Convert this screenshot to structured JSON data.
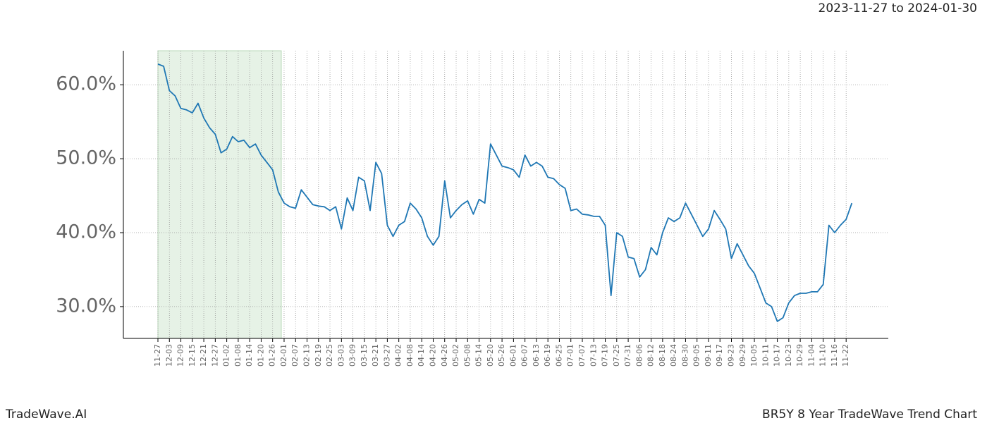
{
  "chart_data": {
    "type": "line",
    "title": "2023-11-27 to 2024-01-30",
    "brand": "TradeWave.AI",
    "subtitle": "BR5Y 8 Year TradeWave Trend Chart",
    "categories": [
      "11-27",
      null,
      "12-03",
      null,
      "12-09",
      null,
      "12-15",
      null,
      "12-21",
      null,
      "12-27",
      null,
      "01-02",
      null,
      "01-08",
      null,
      "01-14",
      null,
      "01-20",
      null,
      "01-26",
      null,
      "02-01",
      null,
      "02-07",
      null,
      "02-13",
      null,
      "02-19",
      null,
      "02-25",
      null,
      "03-03",
      null,
      "03-09",
      null,
      "03-15",
      null,
      "03-21",
      null,
      "03-27",
      null,
      "04-02",
      null,
      "04-08",
      null,
      "04-14",
      null,
      "04-20",
      null,
      "04-26",
      null,
      "05-02",
      null,
      "05-08",
      null,
      "05-14",
      null,
      "05-20",
      null,
      "05-26",
      null,
      "06-01",
      null,
      "06-07",
      null,
      "06-13",
      null,
      "06-19",
      null,
      "06-25",
      null,
      "07-01",
      null,
      "07-07",
      null,
      "07-13",
      null,
      "07-19",
      null,
      "07-25",
      null,
      "07-31",
      null,
      "08-06",
      null,
      "08-12",
      null,
      "08-18",
      null,
      "08-24",
      null,
      "08-30",
      null,
      "09-05",
      null,
      "09-11",
      null,
      "09-17",
      null,
      "09-23",
      null,
      "09-29",
      null,
      "10-05",
      null,
      "10-11",
      null,
      "10-17",
      null,
      "10-23",
      null,
      "10-29",
      null,
      "11-04",
      null,
      "11-10",
      null,
      "11-16",
      null,
      "11-22",
      null
    ],
    "series": [
      {
        "color": "#1f77b4",
        "values": [
          62.8,
          62.5,
          59.2,
          58.5,
          56.8,
          56.6,
          56.2,
          57.5,
          55.5,
          54.2,
          53.3,
          50.8,
          51.3,
          53.0,
          52.3,
          52.5,
          51.5,
          52.0,
          50.5,
          49.5,
          48.5,
          45.5,
          44.0,
          43.5,
          43.3,
          45.8,
          44.8,
          43.8,
          43.6,
          43.5,
          43.0,
          43.5,
          40.5,
          44.7,
          43.0,
          47.5,
          47.0,
          43.0,
          49.5,
          48.0,
          41.0,
          39.5,
          41.0,
          41.5,
          44.0,
          43.2,
          42.0,
          39.5,
          38.3,
          39.5,
          47.0,
          42.0,
          43.0,
          43.8,
          44.3,
          42.5,
          44.5,
          44.0,
          52.0,
          50.5,
          49.0,
          48.8,
          48.5,
          47.5,
          50.5,
          49.0,
          49.5,
          49.0,
          47.5,
          47.3,
          46.5,
          46.0,
          43.0,
          43.2,
          42.5,
          42.4,
          42.2,
          42.2,
          41.0,
          31.5,
          40.0,
          39.5,
          36.7,
          36.5,
          34.0,
          35.0,
          38.0,
          37.0,
          40.0,
          42.0,
          41.5,
          42.0,
          44.0,
          42.5,
          41.0,
          39.5,
          40.5,
          43.0,
          41.8,
          40.5,
          36.5,
          38.5,
          37.0,
          35.5,
          34.5,
          32.5,
          30.5,
          30.0,
          28.0,
          28.5,
          30.5,
          31.5,
          31.8,
          31.8,
          32.0,
          32.0,
          33.0,
          41.0,
          40.0,
          41.0,
          41.8,
          44.0
        ]
      }
    ],
    "ylim": [
      25.7,
      64.6
    ],
    "yticks": [
      {
        "value": 30,
        "label": "30.0%"
      },
      {
        "value": 40,
        "label": "40.0%"
      },
      {
        "value": 50,
        "label": "50.0%"
      },
      {
        "value": 60,
        "label": "60.0%"
      }
    ],
    "grid": true
  }
}
